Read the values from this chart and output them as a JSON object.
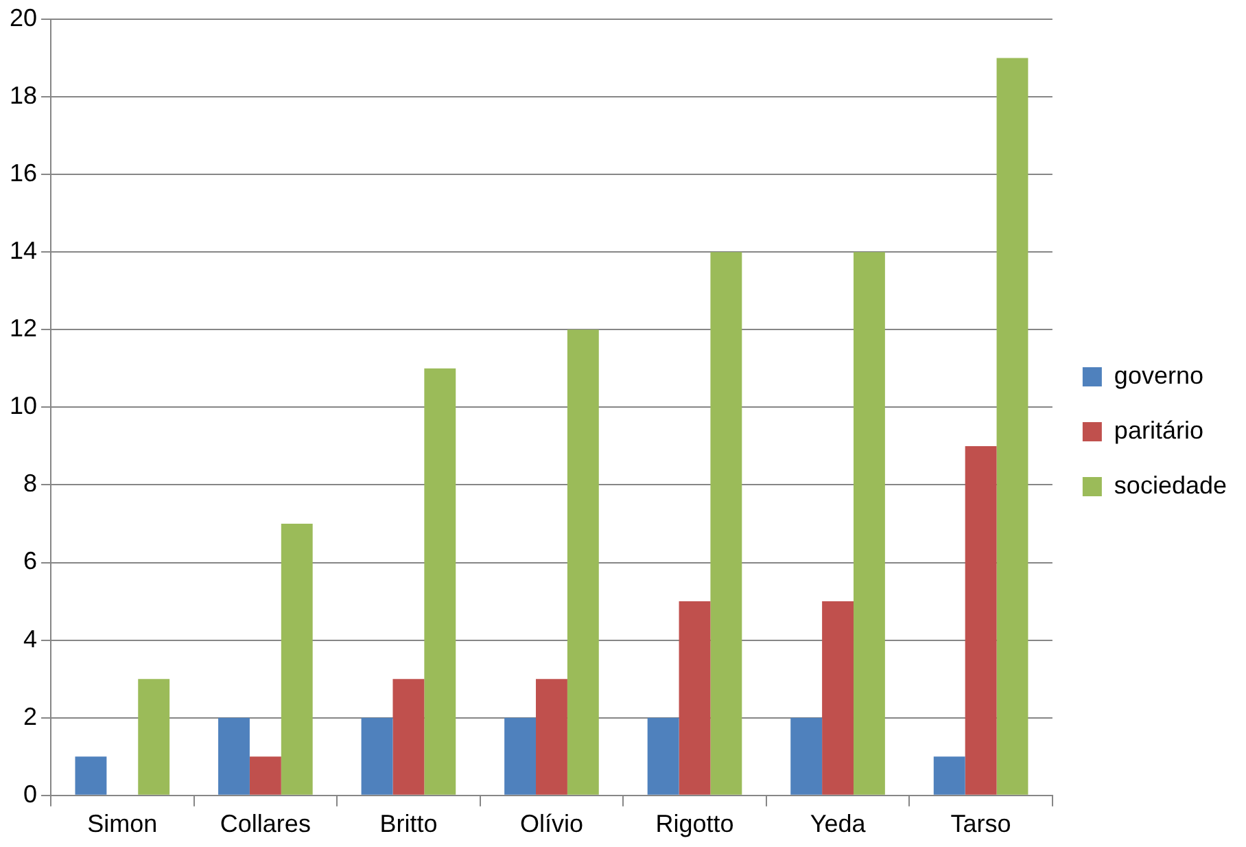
{
  "chart_data": {
    "type": "bar",
    "categories": [
      "Simon",
      "Collares",
      "Britto",
      "Olívio",
      "Rigotto",
      "Yeda",
      "Tarso"
    ],
    "series": [
      {
        "name": "governo",
        "color": "#4f81bd",
        "values": [
          1,
          2,
          2,
          2,
          2,
          2,
          1
        ]
      },
      {
        "name": "paritário",
        "color": "#c0504d",
        "values": [
          0,
          1,
          3,
          3,
          5,
          5,
          9
        ]
      },
      {
        "name": "sociedade",
        "color": "#9bbb59",
        "values": [
          3,
          7,
          11,
          12,
          14,
          14,
          19
        ]
      }
    ],
    "ylim": [
      0,
      20
    ],
    "yticks": [
      0,
      2,
      4,
      6,
      8,
      10,
      12,
      14,
      16,
      18,
      20
    ],
    "grid": "y",
    "legend": "right"
  }
}
